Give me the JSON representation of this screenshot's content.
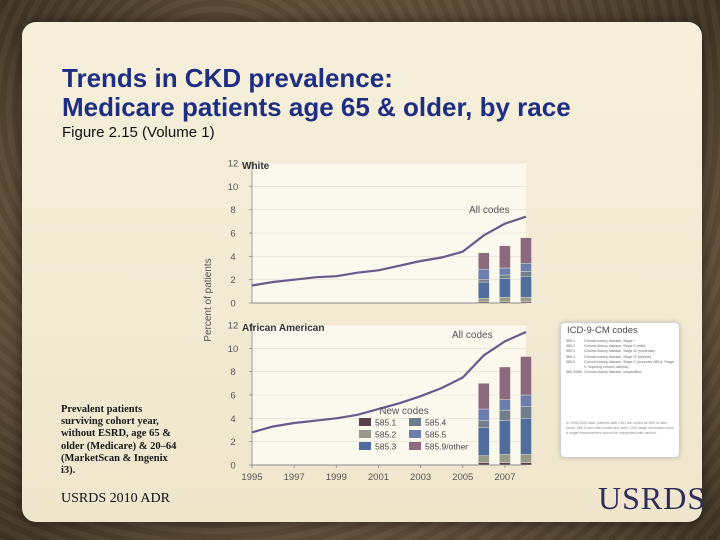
{
  "slide": {
    "title_line1": "Trends in CKD prevalence:",
    "title_line2": "Medicare patients age 65 & older, by race",
    "subtitle": "Figure 2.15 (Volume 1)",
    "caption": "Prevalent patients surviving cohort year, without ESRD, age 65 & older (Medicare) & 20–64 (MarketScan & Ingenix i3).",
    "footer": "USRDS 2010 ADR",
    "logo": "USRDS"
  },
  "colors": {
    "title": "#1e2f83",
    "line": "#6a5a8c",
    "code_585_1": "#5a3f4e",
    "code_585_2": "#959a8a",
    "code_585_3": "#4f6e9e",
    "code_585_4": "#6f7e8a",
    "code_585_5": "#6c7eae",
    "code_585_9_other": "#8c6a7e"
  },
  "codes_box": {
    "title": "ICD-9-CM codes",
    "rows": [
      {
        "code": "585.1",
        "desc": "Chronic kidney disease, Stage I"
      },
      {
        "code": "585.2",
        "desc": "Chronic kidney disease, Stage II (mild)"
      },
      {
        "code": "585.3",
        "desc": "Chronic kidney disease, Stage III (moderate)"
      },
      {
        "code": "585.4",
        "desc": "Chronic kidney disease, Stage IV (severe)"
      },
      {
        "code": "585.5",
        "desc": "Chronic kidney disease, Stage V (excludes 585.6: Stage V, requiring chronic dialysis)"
      },
      {
        "code": "585.9/585",
        "desc": "Chronic kidney disease, unspecified"
      }
    ],
    "note": "In 1995-2005 data, patients with CKD are coded as 585; in later years, 585.9 and other codes are used. CKD stage information from a single measurement should be interpreted with caution."
  },
  "chart_data": {
    "type": "line",
    "ylabel": "Percent of patients",
    "x_ticks": [
      "1995",
      "1997",
      "1999",
      "2001",
      "2003",
      "2005",
      "2007"
    ],
    "y_ticks": [
      "0",
      "2",
      "4",
      "6",
      "8",
      "10",
      "12"
    ],
    "ylim": [
      0,
      12
    ],
    "xlim": [
      1995,
      2008
    ],
    "legend": {
      "title": "New codes",
      "placement": "bottom-center",
      "items": [
        {
          "code": "585.1",
          "color_key": "code_585_1"
        },
        {
          "code": "585.4",
          "color_key": "code_585_4"
        },
        {
          "code": "585.2",
          "color_key": "code_585_2"
        },
        {
          "code": "585.5",
          "color_key": "code_585_5"
        },
        {
          "code": "585.3",
          "color_key": "code_585_3"
        },
        {
          "code": "585.9/other",
          "color_key": "code_585_9_other"
        }
      ]
    },
    "panels": [
      {
        "name": "White",
        "series_label": "All codes",
        "line": {
          "x": [
            1995,
            1996,
            1997,
            1998,
            1999,
            2000,
            2001,
            2002,
            2003,
            2004,
            2005,
            2006,
            2007,
            2008
          ],
          "y": [
            1.5,
            1.8,
            2.0,
            2.2,
            2.3,
            2.6,
            2.8,
            3.2,
            3.6,
            3.9,
            4.4,
            5.8,
            6.8,
            7.4
          ]
        },
        "stacked_bars": {
          "x": [
            2006,
            2007,
            2008
          ],
          "segments": [
            {
              "code": "585.1",
              "values": [
                0.1,
                0.1,
                0.1
              ]
            },
            {
              "code": "585.2",
              "values": [
                0.3,
                0.4,
                0.4
              ]
            },
            {
              "code": "585.3",
              "values": [
                1.4,
                1.6,
                1.8
              ]
            },
            {
              "code": "585.4",
              "values": [
                0.2,
                0.3,
                0.4
              ]
            },
            {
              "code": "585.5",
              "values": [
                0.9,
                0.6,
                0.7
              ]
            },
            {
              "code": "585.9/other",
              "values": [
                1.4,
                1.9,
                2.2
              ]
            }
          ]
        }
      },
      {
        "name": "African American",
        "series_label": "All codes",
        "line": {
          "x": [
            1995,
            1996,
            1997,
            1998,
            1999,
            2000,
            2001,
            2002,
            2003,
            2004,
            2005,
            2006,
            2007,
            2008
          ],
          "y": [
            2.8,
            3.3,
            3.6,
            3.8,
            4.0,
            4.3,
            4.8,
            5.3,
            5.9,
            6.6,
            7.5,
            9.4,
            10.6,
            11.4
          ]
        },
        "stacked_bars": {
          "x": [
            2006,
            2007,
            2008
          ],
          "segments": [
            {
              "code": "585.1",
              "values": [
                0.2,
                0.2,
                0.2
              ]
            },
            {
              "code": "585.2",
              "values": [
                0.6,
                0.7,
                0.7
              ]
            },
            {
              "code": "585.3",
              "values": [
                2.4,
                2.9,
                3.1
              ]
            },
            {
              "code": "585.4",
              "values": [
                0.6,
                0.9,
                1.0
              ]
            },
            {
              "code": "585.5",
              "values": [
                1.0,
                0.9,
                1.0
              ]
            },
            {
              "code": "585.9/other",
              "values": [
                2.2,
                2.8,
                3.3
              ]
            }
          ]
        }
      }
    ]
  }
}
